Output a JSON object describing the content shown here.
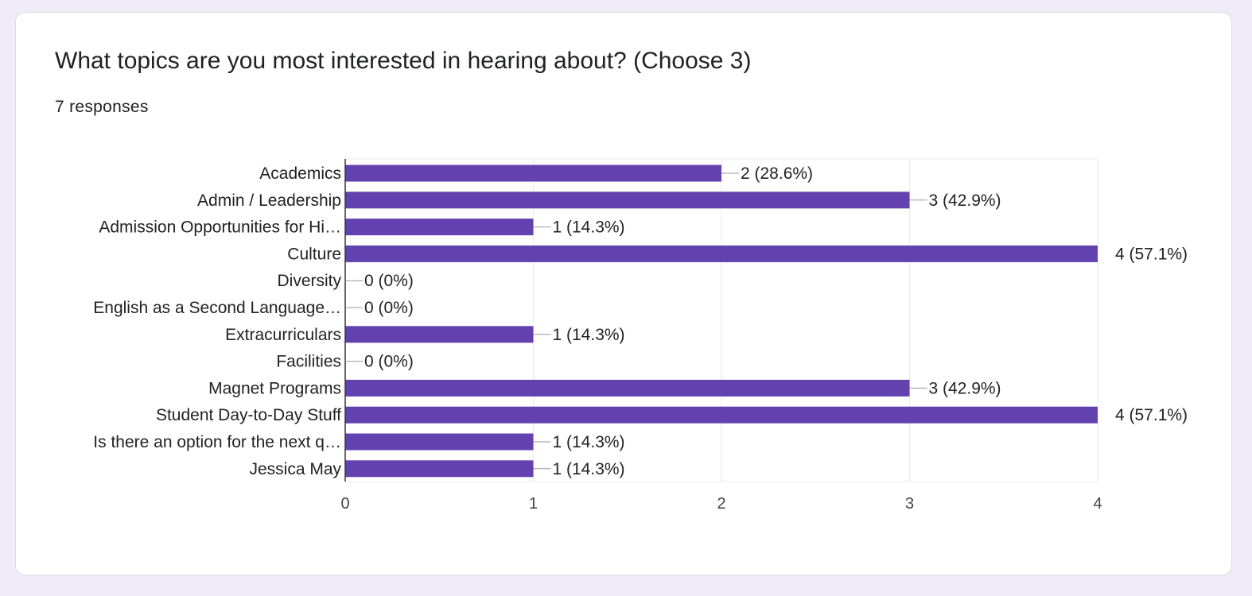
{
  "question": {
    "title": "What topics are you most interested in hearing about? (Choose 3)",
    "responses": "7 responses"
  },
  "colors": {
    "bar": "#6342b0",
    "grid": "#ebebeb",
    "axis": "#333333",
    "leader": "#999999"
  },
  "chart_data": {
    "type": "bar",
    "orientation": "horizontal",
    "categories": [
      "Academics",
      "Admin / Leadership",
      "Admission Opportunities for Hi…",
      "Culture",
      "Diversity",
      "English as a Second Language…",
      "Extracurriculars",
      "Facilities",
      "Magnet Programs",
      "Student Day-to-Day Stuff",
      "Is there an option for the next q…",
      "Jessica May"
    ],
    "values": [
      2,
      3,
      1,
      4,
      0,
      0,
      1,
      0,
      3,
      4,
      1,
      1
    ],
    "value_labels": [
      "2 (28.6%)",
      "3 (42.9%)",
      "1 (14.3%)",
      "4 (57.1%)",
      "0 (0%)",
      "0 (0%)",
      "1 (14.3%)",
      "0 (0%)",
      "3 (42.9%)",
      "4 (57.1%)",
      "1 (14.3%)",
      "1 (14.3%)"
    ],
    "xlim": [
      0,
      4
    ],
    "xticks": [
      0,
      1,
      2,
      3,
      4
    ],
    "xtick_labels": [
      "0",
      "1",
      "2",
      "3",
      "4"
    ],
    "grid": true,
    "legend": "none"
  }
}
